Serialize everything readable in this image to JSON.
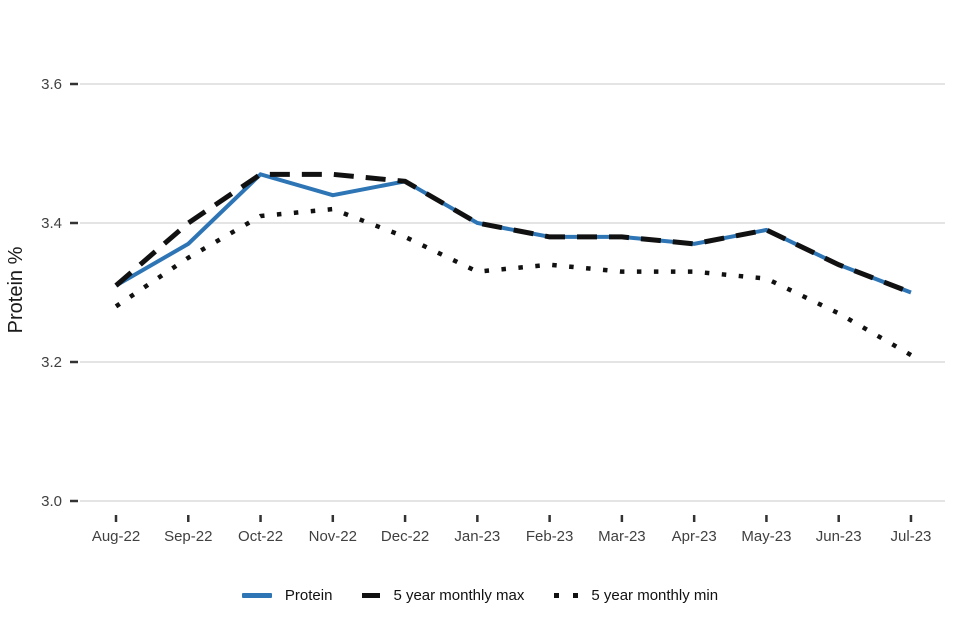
{
  "chart_data": {
    "type": "line",
    "title": "",
    "ylabel": "Protein %",
    "xlabel": "",
    "x": [
      "Aug-22",
      "Sep-22",
      "Oct-22",
      "Nov-22",
      "Dec-22",
      "Jan-23",
      "Feb-23",
      "Mar-23",
      "Apr-23",
      "May-23",
      "Jun-23",
      "Jul-23"
    ],
    "yticks": [
      3.0,
      3.2,
      3.4,
      3.6
    ],
    "ylim": [
      3.0,
      3.6
    ],
    "grid": "horizontal",
    "legend_position": "bottom",
    "series": [
      {
        "name": "Protein",
        "style": "solid",
        "color": "#2E75B5",
        "values": [
          3.31,
          3.37,
          3.47,
          3.44,
          3.46,
          3.4,
          3.38,
          3.38,
          3.37,
          3.39,
          3.34,
          3.3
        ]
      },
      {
        "name": "5 year monthly max",
        "style": "dashed",
        "color": "#111111",
        "values": [
          3.31,
          3.4,
          3.47,
          3.47,
          3.46,
          3.4,
          3.38,
          3.38,
          3.37,
          3.39,
          3.34,
          3.3
        ]
      },
      {
        "name": "5 year monthly min",
        "style": "dotted",
        "color": "#111111",
        "values": [
          3.28,
          3.35,
          3.41,
          3.42,
          3.38,
          3.33,
          3.34,
          3.33,
          3.33,
          3.32,
          3.27,
          3.21
        ]
      }
    ]
  },
  "colors": {
    "accent_blue": "#2E75B5",
    "line_black": "#111111",
    "gridline": "#e4e4e4",
    "tick": "#333333",
    "tick_label": "#404040",
    "axis_title": "#1a1a1a"
  }
}
